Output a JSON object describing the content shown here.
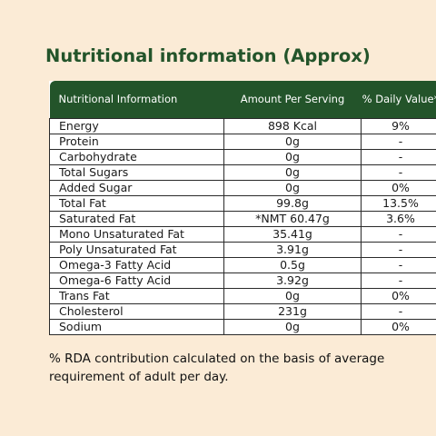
{
  "title": "Nutritional information (Approx)",
  "table": {
    "headers": [
      "Nutritional Information",
      "Amount Per Serving",
      "% Daily Value*"
    ],
    "rows": [
      {
        "name": "Energy",
        "amount": "898 Kcal",
        "dv": "9%"
      },
      {
        "name": "Protein",
        "amount": "0g",
        "dv": "-"
      },
      {
        "name": "Carbohydrate",
        "amount": "0g",
        "dv": "-"
      },
      {
        "name": "Total Sugars",
        "amount": "0g",
        "dv": "-"
      },
      {
        "name": "Added Sugar",
        "amount": "0g",
        "dv": "0%"
      },
      {
        "name": "Total Fat",
        "amount": "99.8g",
        "dv": "13.5%"
      },
      {
        "name": "Saturated Fat",
        "amount": "*NMT 60.47g",
        "dv": "3.6%"
      },
      {
        "name": "Mono Unsaturated Fat",
        "amount": "35.41g",
        "dv": "-"
      },
      {
        "name": "Poly Unsaturated Fat",
        "amount": "3.91g",
        "dv": "-"
      },
      {
        "name": "Omega-3 Fatty Acid",
        "amount": "0.5g",
        "dv": "-"
      },
      {
        "name": "Omega-6 Fatty Acid",
        "amount": "3.92g",
        "dv": "-"
      },
      {
        "name": "Trans Fat",
        "amount": "0g",
        "dv": "0%"
      },
      {
        "name": "Cholesterol",
        "amount": "231g",
        "dv": "-"
      },
      {
        "name": "Sodium",
        "amount": "0g",
        "dv": "0%"
      }
    ]
  },
  "footnote": "% RDA contribution calculated on the basis of average requirement of adult per day.",
  "colors": {
    "background": "#fbebd6",
    "header_green": "#23542a",
    "title_green": "#23542a"
  }
}
